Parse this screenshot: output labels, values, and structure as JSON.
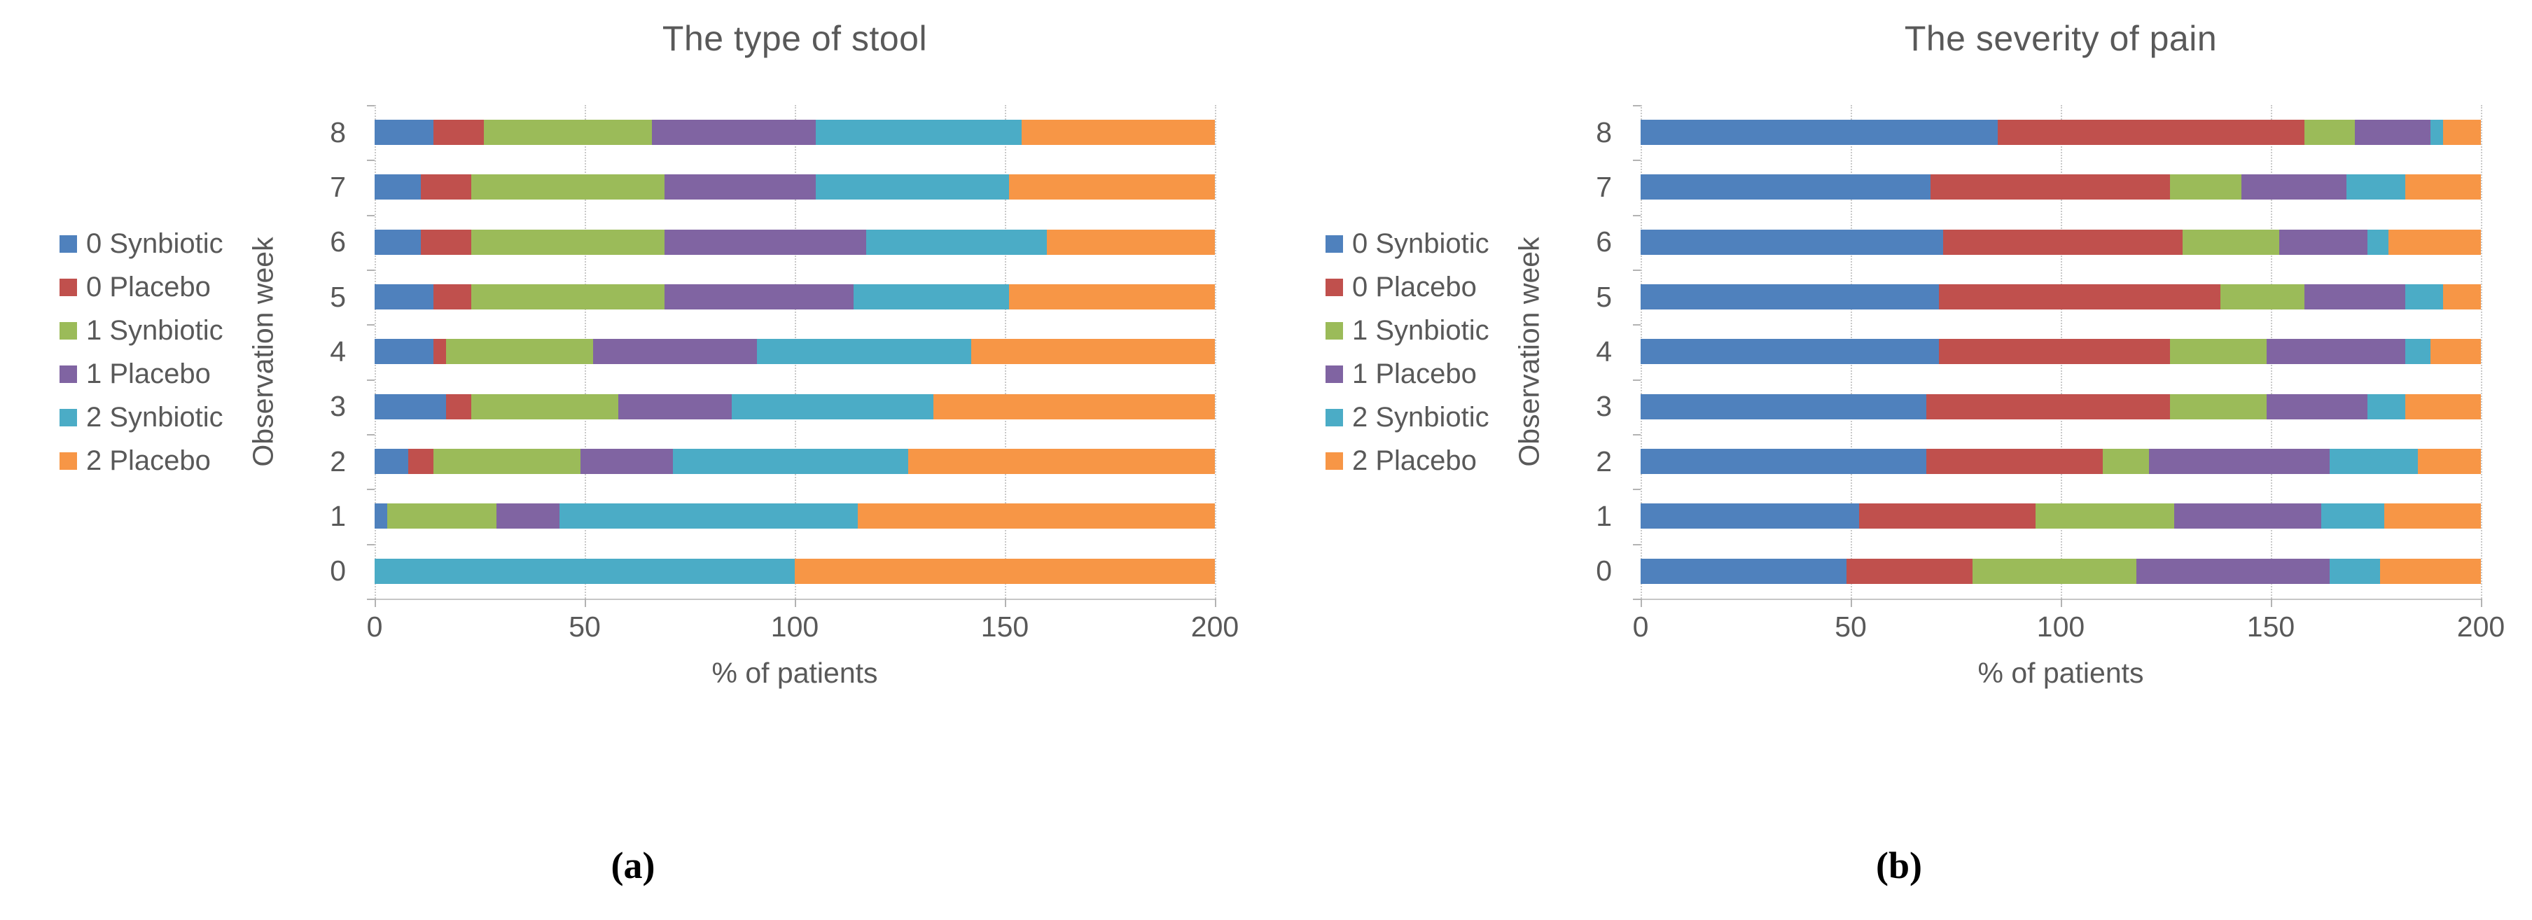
{
  "style": {
    "series_colors": [
      "#4f81bd",
      "#c0504d",
      "#9bbb59",
      "#8064a2",
      "#4bacc6",
      "#f79646"
    ],
    "text_color": "#595959",
    "caption_color": "#000000"
  },
  "chart_data": [
    {
      "type": "bar",
      "stacked": true,
      "orientation": "horizontal",
      "title": "The type of stool",
      "caption": "(a)",
      "xlabel": "% of patients",
      "ylabel": "Observation week",
      "categories": [
        8,
        7,
        6,
        5,
        4,
        3,
        2,
        1,
        0
      ],
      "xlim": [
        0,
        200
      ],
      "xticks": [
        0,
        50,
        100,
        150,
        200
      ],
      "legend_position": "left",
      "grid": "vertical-dotted",
      "series": [
        {
          "name": "0 Synbiotic",
          "color": "#4f81bd",
          "values": [
            14,
            11,
            11,
            14,
            14,
            17,
            8,
            3,
            0
          ]
        },
        {
          "name": "0 Placebo",
          "color": "#c0504d",
          "values": [
            12,
            12,
            12,
            9,
            3,
            6,
            6,
            0,
            0
          ]
        },
        {
          "name": "1 Synbiotic",
          "color": "#9bbb59",
          "values": [
            40,
            46,
            46,
            46,
            35,
            35,
            35,
            26,
            0
          ]
        },
        {
          "name": "1 Placebo",
          "color": "#8064a2",
          "values": [
            39,
            36,
            48,
            45,
            39,
            27,
            22,
            15,
            0
          ]
        },
        {
          "name": "2 Synbiotic",
          "color": "#4bacc6",
          "values": [
            49,
            46,
            43,
            37,
            51,
            48,
            56,
            71,
            100
          ]
        },
        {
          "name": "2 Placebo",
          "color": "#f79646",
          "values": [
            46,
            49,
            40,
            49,
            58,
            67,
            73,
            85,
            100
          ]
        }
      ]
    },
    {
      "type": "bar",
      "stacked": true,
      "orientation": "horizontal",
      "title": "The severity of pain",
      "caption": "(b)",
      "xlabel": "% of patients",
      "ylabel": "Observation week",
      "categories": [
        8,
        7,
        6,
        5,
        4,
        3,
        2,
        1,
        0
      ],
      "xlim": [
        0,
        200
      ],
      "xticks": [
        0,
        50,
        100,
        150,
        200
      ],
      "legend_position": "left",
      "grid": "vertical-dotted",
      "series": [
        {
          "name": "0 Synbiotic",
          "color": "#4f81bd",
          "values": [
            85,
            69,
            72,
            71,
            71,
            68,
            68,
            52,
            49
          ]
        },
        {
          "name": "0 Placebo",
          "color": "#c0504d",
          "values": [
            73,
            57,
            57,
            67,
            55,
            58,
            42,
            42,
            30
          ]
        },
        {
          "name": "1 Synbiotic",
          "color": "#9bbb59",
          "values": [
            12,
            17,
            23,
            20,
            23,
            23,
            11,
            33,
            39
          ]
        },
        {
          "name": "1 Placebo",
          "color": "#8064a2",
          "values": [
            18,
            25,
            21,
            24,
            33,
            24,
            43,
            35,
            46
          ]
        },
        {
          "name": "2 Synbiotic",
          "color": "#4bacc6",
          "values": [
            3,
            14,
            5,
            9,
            6,
            9,
            21,
            15,
            12
          ]
        },
        {
          "name": "2 Placebo",
          "color": "#f79646",
          "values": [
            9,
            18,
            22,
            9,
            12,
            18,
            15,
            23,
            24
          ]
        }
      ]
    }
  ]
}
